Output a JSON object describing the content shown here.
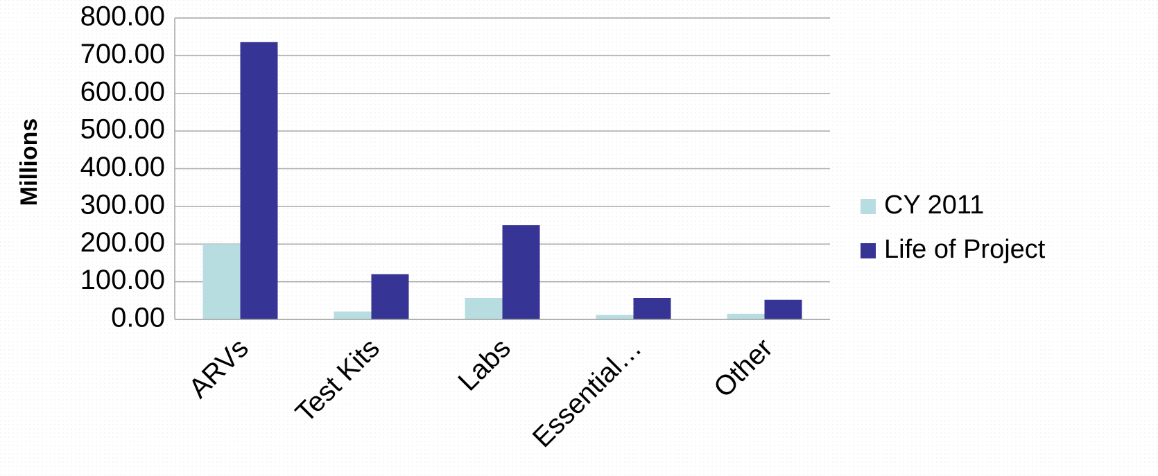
{
  "chart_data": {
    "type": "bar",
    "y_label": "Millions",
    "categories": [
      "ARVs",
      "Test Kits",
      "Labs",
      "Essential…",
      "Other"
    ],
    "series": [
      {
        "name": "CY 2011",
        "color": "#b7dde0",
        "values": [
          200,
          21,
          57,
          12,
          15
        ]
      },
      {
        "name": "Life of Project",
        "color": "#363596",
        "values": [
          736,
          120,
          250,
          57,
          52
        ]
      }
    ],
    "ylim": [
      0,
      800
    ],
    "yticks": [
      {
        "value": 0,
        "label": "0.00"
      },
      {
        "value": 100,
        "label": "100.00"
      },
      {
        "value": 200,
        "label": "200.00"
      },
      {
        "value": 300,
        "label": "300.00"
      },
      {
        "value": 400,
        "label": "400.00"
      },
      {
        "value": 500,
        "label": "500.00"
      },
      {
        "value": 600,
        "label": "600.00"
      },
      {
        "value": 700,
        "label": "700.00"
      },
      {
        "value": 800,
        "label": "800.00"
      }
    ],
    "grid": true,
    "legend": "right"
  }
}
